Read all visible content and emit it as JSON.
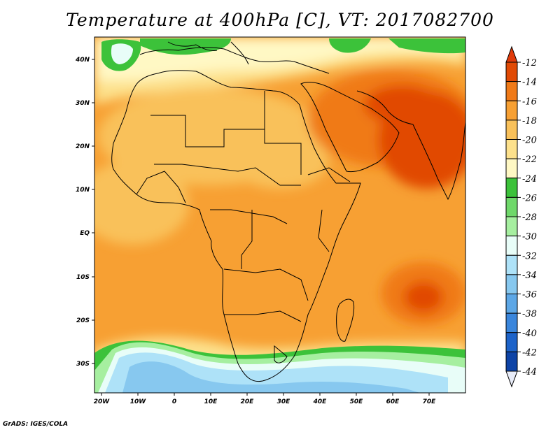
{
  "title": "Temperature at 400hPa [C], VT: 2017082700",
  "credit": "GrADS: IGES/COLA",
  "map": {
    "lon_labels": [
      "20W",
      "10W",
      "0",
      "10E",
      "20E",
      "30E",
      "40E",
      "50E",
      "60E",
      "70E"
    ],
    "lat_labels": [
      "40N",
      "30N",
      "20N",
      "10N",
      "EQ",
      "10S",
      "20S",
      "30S"
    ]
  },
  "colorbar": {
    "labels": [
      "-12",
      "-14",
      "-16",
      "-18",
      "-20",
      "-22",
      "-24",
      "-26",
      "-28",
      "-30",
      "-32",
      "-34",
      "-36",
      "-38",
      "-40",
      "-42",
      "-44"
    ],
    "colors": [
      "#e14a05",
      "#f07a18",
      "#f7a033",
      "#f9c15a",
      "#fde18c",
      "#fff8c4",
      "#3cc23a",
      "#6fd86a",
      "#a6efa0",
      "#e8fdf8",
      "#aee2f8",
      "#87c8ef",
      "#5da7e6",
      "#3a86dc",
      "#1d63c9",
      "#0d43a6",
      "#0a1f72"
    ],
    "top_color": "#e03a0a",
    "bottom_color": "#e8ecf8"
  },
  "colors": {
    "land_outline": "#000000",
    "background": "#f7a033"
  }
}
